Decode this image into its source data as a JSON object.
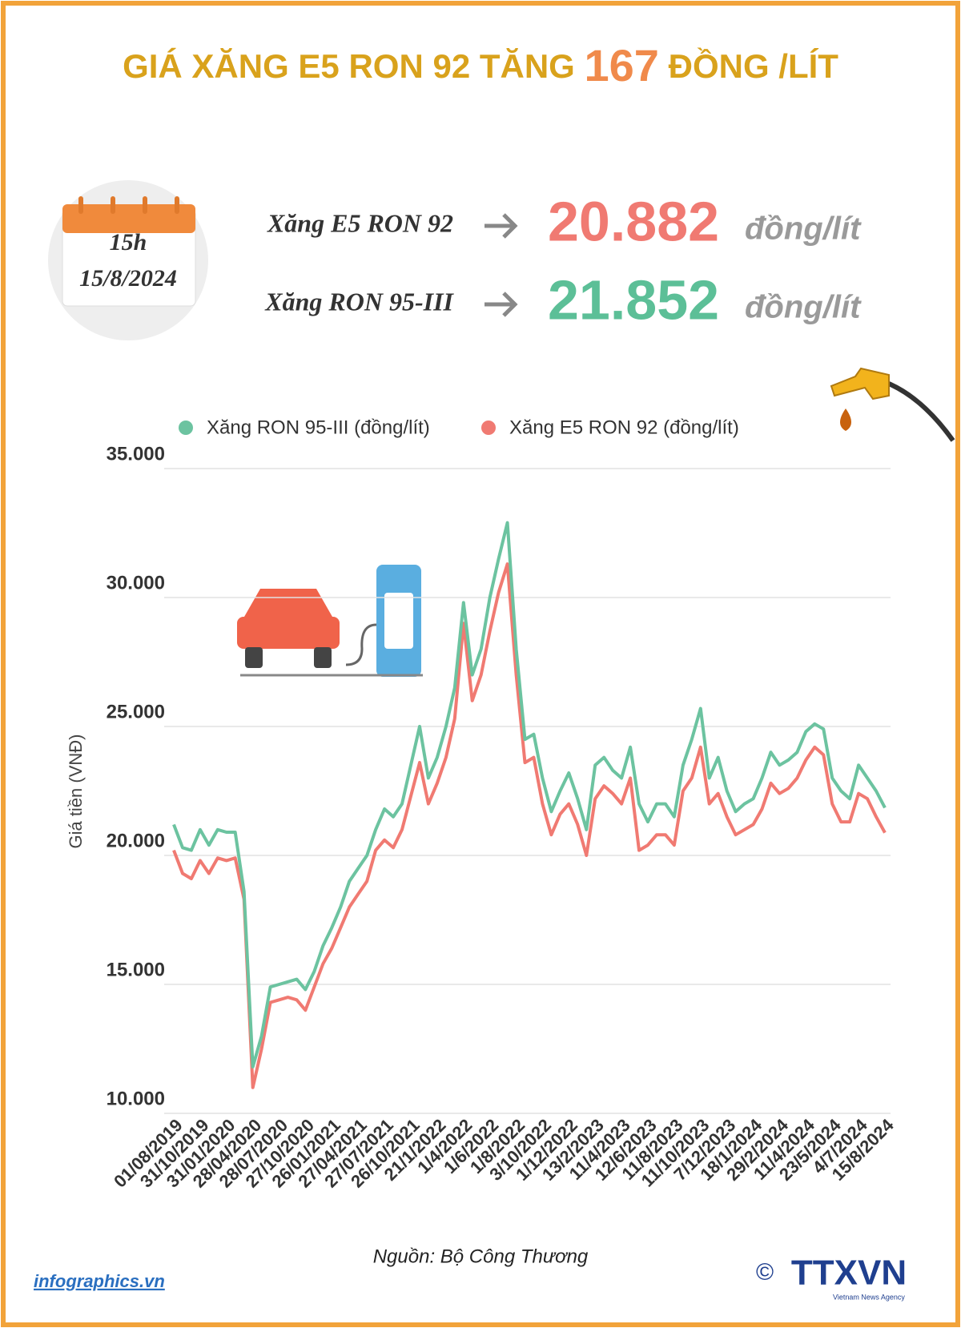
{
  "header": {
    "title_prefix": "GIÁ XĂNG E5 RON 92 TĂNG",
    "title_amount": "167",
    "title_suffix": "ĐỒNG /LÍT"
  },
  "calendar": {
    "time": "15h",
    "date": "15/8/2024"
  },
  "summary": [
    {
      "name": "Xăng E5 RON 92",
      "price": "20.882",
      "unit": "đồng/lít"
    },
    {
      "name": "Xăng RON 95-III",
      "price": "21.852",
      "unit": "đồng/lít"
    }
  ],
  "chart_data": {
    "type": "line",
    "y_label": "Giá tiền (VNĐ)",
    "categories": [
      "01/08/2019",
      null,
      null,
      "31/10/2019",
      null,
      null,
      "31/01/2020",
      null,
      null,
      "28/04/2020",
      null,
      null,
      "28/07/2020",
      null,
      null,
      "27/10/2020",
      null,
      null,
      "26/01/2021",
      null,
      null,
      "27/04/2021",
      null,
      null,
      "27/07/2021",
      null,
      null,
      "26/10/2021",
      null,
      null,
      "21/1/2022",
      null,
      null,
      "1/4/2022",
      null,
      null,
      "1/6/2022",
      null,
      null,
      "1/8/2022",
      null,
      null,
      "3/10/2022",
      null,
      null,
      "1/12/2022",
      null,
      null,
      "13/2/2023",
      null,
      null,
      "11/4/2023",
      null,
      null,
      "12/6/2023",
      null,
      null,
      "11/8/2023",
      null,
      null,
      "11/10/2023",
      null,
      null,
      "7/12/2023",
      null,
      null,
      "18/1/2024",
      null,
      null,
      "29/2/2024",
      null,
      null,
      "11/4/2024",
      null,
      null,
      "23/5/2024",
      null,
      null,
      "4/7/2024",
      null,
      null,
      "15/8/2024"
    ],
    "series": [
      {
        "name": "Xăng RON 95-III (đồng/lít)",
        "color": "#6cc3a0",
        "values": [
          21200,
          20300,
          20200,
          21000,
          20400,
          21000,
          20900,
          20900,
          18600,
          11800,
          13000,
          14900,
          15000,
          15100,
          15200,
          14800,
          15500,
          16500,
          17200,
          18000,
          19000,
          19500,
          20000,
          21000,
          21800,
          21500,
          22000,
          23500,
          25000,
          23000,
          23800,
          25000,
          26500,
          29800,
          27000,
          28000,
          30000,
          31500,
          32900,
          28000,
          24500,
          24700,
          23000,
          21700,
          22500,
          23200,
          22200,
          21000,
          23500,
          23800,
          23300,
          23000,
          24200,
          22000,
          21300,
          22000,
          22000,
          21500,
          23500,
          24500,
          25700,
          23000,
          23800,
          22500,
          21700,
          22000,
          22200,
          23000,
          24000,
          23500,
          23700,
          24000,
          24800,
          25100,
          24900,
          23000,
          22500,
          22200,
          23500,
          23000,
          22500,
          21852
        ]
      },
      {
        "name": "Xăng E5 RON 92 (đồng/lít)",
        "color": "#f07a72",
        "values": [
          20200,
          19300,
          19100,
          19800,
          19300,
          19900,
          19800,
          19900,
          18300,
          11000,
          12500,
          14300,
          14400,
          14500,
          14400,
          14000,
          14900,
          15800,
          16400,
          17200,
          18000,
          18500,
          19000,
          20200,
          20600,
          20300,
          21000,
          22300,
          23600,
          22000,
          22800,
          23800,
          25300,
          29000,
          26000,
          27000,
          28700,
          30200,
          31300,
          27000,
          23600,
          23800,
          22000,
          20800,
          21600,
          22000,
          21200,
          20000,
          22200,
          22700,
          22400,
          22000,
          23000,
          20200,
          20400,
          20800,
          20800,
          20400,
          22500,
          23000,
          24200,
          22000,
          22400,
          21500,
          20800,
          21000,
          21200,
          21800,
          22800,
          22400,
          22600,
          23000,
          23700,
          24200,
          23900,
          22000,
          21300,
          21300,
          22400,
          22200,
          21500,
          20882
        ]
      }
    ],
    "ylim": [
      10000,
      35000
    ],
    "yticks": [
      {
        "value": 10000,
        "label": "10.000"
      },
      {
        "value": 15000,
        "label": "15.000"
      },
      {
        "value": 20000,
        "label": "20.000"
      },
      {
        "value": 25000,
        "label": "25.000"
      },
      {
        "value": 30000,
        "label": "30.000"
      },
      {
        "value": 35000,
        "label": "35.000"
      }
    ],
    "grid": true
  },
  "footer": {
    "source": "Nguồn: Bộ Công Thương",
    "site": "infographics.vn",
    "copyright": "©",
    "agency": "TTXVN",
    "agency_sub": "Vietnam News Agency"
  }
}
